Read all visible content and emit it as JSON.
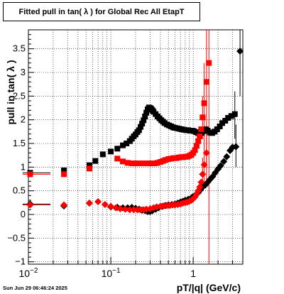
{
  "chart_data": {
    "type": "scatter",
    "title": "Fitted pull in tan( λ ) for Global Rec All EtapT",
    "xlabel": "pT/|q| (GeV/c)",
    "ylabel": "pull in tan( λ )",
    "x_scale": "log",
    "xlim": [
      0.01,
      4
    ],
    "ylim": [
      -1.05,
      3.9
    ],
    "grid": true,
    "x_tick_labels": [
      {
        "value": 0.01,
        "base": "10",
        "exp": "−2"
      },
      {
        "value": 0.1,
        "base": "10",
        "exp": "−1"
      },
      {
        "value": 1,
        "base": "1",
        "exp": ""
      }
    ],
    "y_ticks": [
      {
        "value": -1,
        "label": "−1"
      },
      {
        "value": -0.5,
        "label": "−0.5"
      },
      {
        "value": 0,
        "label": "0"
      },
      {
        "value": 0.5,
        "label": "0.5"
      },
      {
        "value": 1,
        "label": "1"
      },
      {
        "value": 1.5,
        "label": "1.5"
      },
      {
        "value": 2,
        "label": "2"
      },
      {
        "value": 2.5,
        "label": "2.5"
      },
      {
        "value": 3,
        "label": "3"
      },
      {
        "value": 3.5,
        "label": "3.5"
      }
    ],
    "series": [
      {
        "marker": "square",
        "color": "#000000",
        "points": [
          {
            "x": 0.0105,
            "y": 0.88,
            "xlo": 0.0085,
            "xhi": 0.0185
          },
          {
            "x": 0.027,
            "y": 0.93
          },
          {
            "x": 0.055,
            "y": 1.04
          },
          {
            "x": 0.065,
            "y": 1.13
          },
          {
            "x": 0.08,
            "y": 1.27
          },
          {
            "x": 0.1,
            "y": 1.33
          },
          {
            "x": 0.12,
            "y": 1.39
          },
          {
            "x": 0.14,
            "y": 1.46
          },
          {
            "x": 0.155,
            "y": 1.5
          },
          {
            "x": 0.17,
            "y": 1.55
          },
          {
            "x": 0.18,
            "y": 1.6
          },
          {
            "x": 0.19,
            "y": 1.65
          },
          {
            "x": 0.2,
            "y": 1.69
          },
          {
            "x": 0.21,
            "y": 1.74
          },
          {
            "x": 0.22,
            "y": 1.78
          },
          {
            "x": 0.23,
            "y": 1.85
          },
          {
            "x": 0.24,
            "y": 1.92
          },
          {
            "x": 0.25,
            "y": 1.99
          },
          {
            "x": 0.26,
            "y": 2.07
          },
          {
            "x": 0.27,
            "y": 2.15
          },
          {
            "x": 0.28,
            "y": 2.22
          },
          {
            "x": 0.29,
            "y": 2.26
          },
          {
            "x": 0.3,
            "y": 2.25
          },
          {
            "x": 0.31,
            "y": 2.23
          },
          {
            "x": 0.32,
            "y": 2.2
          },
          {
            "x": 0.33,
            "y": 2.17
          },
          {
            "x": 0.35,
            "y": 2.12
          },
          {
            "x": 0.37,
            "y": 2.07
          },
          {
            "x": 0.39,
            "y": 2.03
          },
          {
            "x": 0.41,
            "y": 1.99
          },
          {
            "x": 0.43,
            "y": 1.96
          },
          {
            "x": 0.45,
            "y": 1.93
          },
          {
            "x": 0.48,
            "y": 1.9
          },
          {
            "x": 0.51,
            "y": 1.88
          },
          {
            "x": 0.54,
            "y": 1.86
          },
          {
            "x": 0.57,
            "y": 1.84
          },
          {
            "x": 0.6,
            "y": 1.83
          },
          {
            "x": 0.64,
            "y": 1.82
          },
          {
            "x": 0.68,
            "y": 1.81
          },
          {
            "x": 0.72,
            "y": 1.8
          },
          {
            "x": 0.77,
            "y": 1.79
          },
          {
            "x": 0.82,
            "y": 1.78
          },
          {
            "x": 0.87,
            "y": 1.78
          },
          {
            "x": 0.92,
            "y": 1.77
          },
          {
            "x": 0.97,
            "y": 1.77
          },
          {
            "x": 1.02,
            "y": 1.76
          },
          {
            "x": 1.08,
            "y": 1.74
          },
          {
            "x": 1.14,
            "y": 1.72
          },
          {
            "x": 1.2,
            "y": 1.7
          },
          {
            "x": 1.27,
            "y": 1.72
          },
          {
            "x": 1.34,
            "y": 1.76
          },
          {
            "x": 1.42,
            "y": 1.8
          },
          {
            "x": 1.5,
            "y": 1.77
          },
          {
            "x": 1.6,
            "y": 1.73
          },
          {
            "x": 1.7,
            "y": 1.72
          },
          {
            "x": 1.82,
            "y": 1.75
          },
          {
            "x": 1.95,
            "y": 1.8
          },
          {
            "x": 2.1,
            "y": 1.86
          },
          {
            "x": 2.25,
            "y": 1.93
          },
          {
            "x": 2.45,
            "y": 1.98
          },
          {
            "x": 2.65,
            "y": 2.04
          },
          {
            "x": 2.9,
            "y": 2.08
          },
          {
            "x": 3.2,
            "y": 2.12,
            "ylo": 1.6,
            "yhi": 2.6
          }
        ]
      },
      {
        "marker": "square",
        "color": "#ff0000",
        "points": [
          {
            "x": 0.0105,
            "y": 0.85,
            "xlo": 0.0085,
            "xhi": 0.0185
          },
          {
            "x": 0.027,
            "y": 0.85
          },
          {
            "x": 0.055,
            "y": 0.97
          },
          {
            "x": 0.12,
            "y": 1.18
          },
          {
            "x": 0.14,
            "y": 1.12
          },
          {
            "x": 0.16,
            "y": 1.09
          },
          {
            "x": 0.18,
            "y": 1.08
          },
          {
            "x": 0.2,
            "y": 1.08
          },
          {
            "x": 0.22,
            "y": 1.08
          },
          {
            "x": 0.25,
            "y": 1.08
          },
          {
            "x": 0.28,
            "y": 1.08
          },
          {
            "x": 0.31,
            "y": 1.08
          },
          {
            "x": 0.34,
            "y": 1.08
          },
          {
            "x": 0.37,
            "y": 1.09
          },
          {
            "x": 0.4,
            "y": 1.11
          },
          {
            "x": 0.43,
            "y": 1.13
          },
          {
            "x": 0.46,
            "y": 1.15
          },
          {
            "x": 0.5,
            "y": 1.17
          },
          {
            "x": 0.54,
            "y": 1.18
          },
          {
            "x": 0.58,
            "y": 1.19
          },
          {
            "x": 0.62,
            "y": 1.19
          },
          {
            "x": 0.66,
            "y": 1.2
          },
          {
            "x": 0.7,
            "y": 1.21
          },
          {
            "x": 0.75,
            "y": 1.21
          },
          {
            "x": 0.8,
            "y": 1.22
          },
          {
            "x": 0.85,
            "y": 1.22
          },
          {
            "x": 0.9,
            "y": 1.24
          },
          {
            "x": 0.95,
            "y": 1.26
          },
          {
            "x": 1.0,
            "y": 1.3
          },
          {
            "x": 1.05,
            "y": 1.36
          },
          {
            "x": 1.1,
            "y": 1.45
          },
          {
            "x": 1.15,
            "y": 1.55
          },
          {
            "x": 1.2,
            "y": 1.65
          },
          {
            "x": 1.25,
            "y": 1.8
          },
          {
            "x": 1.3,
            "y": 2.05,
            "ylo": 1.6,
            "yhi": 2.5
          },
          {
            "x": 1.36,
            "y": 2.35,
            "ylo": 1.5,
            "yhi": 3.2
          },
          {
            "x": 1.45,
            "y": 2.8,
            "ylo": 1.0,
            "yhi": 3.9
          },
          {
            "x": 1.55,
            "y": 3.2,
            "ylo": -1.05,
            "yhi": 3.9
          }
        ]
      },
      {
        "marker": "diamond",
        "color": "#000000",
        "points": [
          {
            "x": 0.0105,
            "y": 0.22,
            "xlo": 0.0085,
            "xhi": 0.0185
          },
          {
            "x": 0.027,
            "y": 0.18
          },
          {
            "x": 0.055,
            "y": 0.24
          },
          {
            "x": 0.1,
            "y": 0.16
          },
          {
            "x": 0.12,
            "y": 0.15
          },
          {
            "x": 0.14,
            "y": 0.14
          },
          {
            "x": 0.16,
            "y": 0.14
          },
          {
            "x": 0.18,
            "y": 0.15
          },
          {
            "x": 0.2,
            "y": 0.13
          },
          {
            "x": 0.22,
            "y": 0.11
          },
          {
            "x": 0.24,
            "y": 0.09
          },
          {
            "x": 0.26,
            "y": 0.08
          },
          {
            "x": 0.28,
            "y": 0.06
          },
          {
            "x": 0.3,
            "y": 0.06
          },
          {
            "x": 0.32,
            "y": 0.08
          },
          {
            "x": 0.35,
            "y": 0.11
          },
          {
            "x": 0.38,
            "y": 0.14
          },
          {
            "x": 0.42,
            "y": 0.17
          },
          {
            "x": 0.46,
            "y": 0.19
          },
          {
            "x": 0.5,
            "y": 0.2
          },
          {
            "x": 0.55,
            "y": 0.21
          },
          {
            "x": 0.6,
            "y": 0.22
          },
          {
            "x": 0.65,
            "y": 0.24
          },
          {
            "x": 0.7,
            "y": 0.26
          },
          {
            "x": 0.75,
            "y": 0.28
          },
          {
            "x": 0.8,
            "y": 0.3
          },
          {
            "x": 0.87,
            "y": 0.32
          },
          {
            "x": 0.95,
            "y": 0.35
          },
          {
            "x": 1.0,
            "y": 0.38
          },
          {
            "x": 1.08,
            "y": 0.42
          },
          {
            "x": 1.15,
            "y": 0.46
          },
          {
            "x": 1.22,
            "y": 0.52
          },
          {
            "x": 1.3,
            "y": 0.58
          },
          {
            "x": 1.4,
            "y": 0.62
          },
          {
            "x": 1.5,
            "y": 0.68
          },
          {
            "x": 1.6,
            "y": 0.74
          },
          {
            "x": 1.72,
            "y": 0.8
          },
          {
            "x": 1.85,
            "y": 0.88
          },
          {
            "x": 2.0,
            "y": 0.96
          },
          {
            "x": 2.15,
            "y": 1.03
          },
          {
            "x": 2.35,
            "y": 1.12
          },
          {
            "x": 2.55,
            "y": 1.22
          },
          {
            "x": 2.8,
            "y": 1.35
          },
          {
            "x": 3.0,
            "y": 1.42
          },
          {
            "x": 3.3,
            "y": 1.43,
            "ylo": 1.0,
            "yhi": 1.9
          },
          {
            "x": 3.7,
            "y": 3.45,
            "ylo": 2.5,
            "yhi": 3.9
          }
        ]
      },
      {
        "marker": "diamond",
        "color": "#ff0000",
        "points": [
          {
            "x": 0.0105,
            "y": 0.2,
            "xlo": 0.0085,
            "xhi": 0.0185
          },
          {
            "x": 0.027,
            "y": 0.2
          },
          {
            "x": 0.055,
            "y": 0.24
          },
          {
            "x": 0.07,
            "y": 0.27
          },
          {
            "x": 0.085,
            "y": 0.21
          },
          {
            "x": 0.1,
            "y": 0.17
          },
          {
            "x": 0.115,
            "y": 0.14
          },
          {
            "x": 0.13,
            "y": 0.12
          },
          {
            "x": 0.15,
            "y": 0.11
          },
          {
            "x": 0.17,
            "y": 0.1
          },
          {
            "x": 0.19,
            "y": 0.1
          },
          {
            "x": 0.21,
            "y": 0.1
          },
          {
            "x": 0.23,
            "y": 0.1
          },
          {
            "x": 0.25,
            "y": 0.1
          },
          {
            "x": 0.27,
            "y": 0.11
          },
          {
            "x": 0.3,
            "y": 0.12
          },
          {
            "x": 0.33,
            "y": 0.14
          },
          {
            "x": 0.36,
            "y": 0.16
          },
          {
            "x": 0.4,
            "y": 0.17
          },
          {
            "x": 0.44,
            "y": 0.18
          },
          {
            "x": 0.48,
            "y": 0.19
          },
          {
            "x": 0.52,
            "y": 0.19
          },
          {
            "x": 0.56,
            "y": 0.2
          },
          {
            "x": 0.6,
            "y": 0.2
          },
          {
            "x": 0.65,
            "y": 0.21
          },
          {
            "x": 0.7,
            "y": 0.22
          },
          {
            "x": 0.75,
            "y": 0.24
          },
          {
            "x": 0.8,
            "y": 0.25
          },
          {
            "x": 0.85,
            "y": 0.26
          },
          {
            "x": 0.9,
            "y": 0.28
          },
          {
            "x": 0.95,
            "y": 0.3
          },
          {
            "x": 1.0,
            "y": 0.33
          },
          {
            "x": 1.05,
            "y": 0.37
          },
          {
            "x": 1.1,
            "y": 0.43
          },
          {
            "x": 1.15,
            "y": 0.5
          },
          {
            "x": 1.2,
            "y": 0.58
          },
          {
            "x": 1.25,
            "y": 0.68
          },
          {
            "x": 1.3,
            "y": 0.85,
            "ylo": 0.5,
            "yhi": 1.2
          },
          {
            "x": 1.36,
            "y": 1.05,
            "ylo": 0.6,
            "yhi": 1.5
          },
          {
            "x": 1.45,
            "y": 1.3,
            "ylo": 0.7,
            "yhi": 1.9
          }
        ]
      }
    ]
  },
  "footer": {
    "timestamp": "Sun Jun 29 06:46:24 2025"
  }
}
